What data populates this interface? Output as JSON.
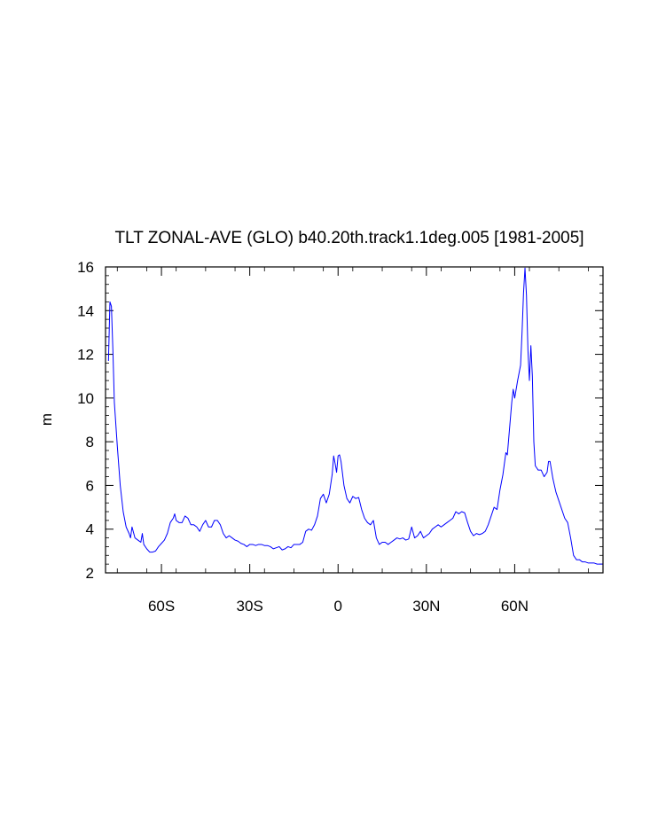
{
  "chart_data": {
    "type": "line",
    "title": "TLT ZONAL-AVE (GLO) b40.20th.track1.1deg.005 [1981-2005]",
    "xlabel": "",
    "ylabel": "m",
    "xlim": [
      -79,
      90
    ],
    "ylim": [
      2,
      16
    ],
    "grid": false,
    "x_ticks": [
      {
        "value": -60,
        "label": "60S"
      },
      {
        "value": -30,
        "label": "30S"
      },
      {
        "value": 0,
        "label": "0"
      },
      {
        "value": 30,
        "label": "30N"
      },
      {
        "value": 60,
        "label": "60N"
      }
    ],
    "y_ticks": [
      2,
      4,
      6,
      8,
      10,
      12,
      14,
      16
    ],
    "series": [
      {
        "color": "#0000ff",
        "points": [
          [
            -78,
            11.7
          ],
          [
            -77.5,
            14.4
          ],
          [
            -77,
            14.2
          ],
          [
            -76.5,
            12.2
          ],
          [
            -76,
            9.8
          ],
          [
            -75,
            7.8
          ],
          [
            -74,
            6.0
          ],
          [
            -73,
            4.8
          ],
          [
            -72,
            4.1
          ],
          [
            -71,
            3.8
          ],
          [
            -70.5,
            3.6
          ],
          [
            -70,
            4.1
          ],
          [
            -69,
            3.6
          ],
          [
            -68,
            3.5
          ],
          [
            -67,
            3.4
          ],
          [
            -66.5,
            3.8
          ],
          [
            -66,
            3.3
          ],
          [
            -65,
            3.1
          ],
          [
            -64,
            2.95
          ],
          [
            -63,
            2.95
          ],
          [
            -62,
            3.0
          ],
          [
            -61,
            3.2
          ],
          [
            -60,
            3.35
          ],
          [
            -59,
            3.5
          ],
          [
            -58,
            3.8
          ],
          [
            -57,
            4.3
          ],
          [
            -56,
            4.5
          ],
          [
            -55.5,
            4.7
          ],
          [
            -55,
            4.4
          ],
          [
            -54,
            4.3
          ],
          [
            -53,
            4.3
          ],
          [
            -52,
            4.6
          ],
          [
            -51,
            4.5
          ],
          [
            -50,
            4.2
          ],
          [
            -49,
            4.2
          ],
          [
            -48,
            4.1
          ],
          [
            -47,
            3.9
          ],
          [
            -46,
            4.2
          ],
          [
            -45,
            4.4
          ],
          [
            -44,
            4.1
          ],
          [
            -43,
            4.1
          ],
          [
            -42,
            4.4
          ],
          [
            -41,
            4.4
          ],
          [
            -40,
            4.2
          ],
          [
            -39,
            3.8
          ],
          [
            -38,
            3.6
          ],
          [
            -37,
            3.7
          ],
          [
            -36,
            3.6
          ],
          [
            -35,
            3.5
          ],
          [
            -34,
            3.45
          ],
          [
            -33,
            3.35
          ],
          [
            -32,
            3.3
          ],
          [
            -31,
            3.2
          ],
          [
            -30,
            3.3
          ],
          [
            -29,
            3.3
          ],
          [
            -28,
            3.25
          ],
          [
            -27,
            3.3
          ],
          [
            -26,
            3.3
          ],
          [
            -25,
            3.25
          ],
          [
            -24,
            3.25
          ],
          [
            -23,
            3.2
          ],
          [
            -22,
            3.1
          ],
          [
            -21,
            3.15
          ],
          [
            -20,
            3.2
          ],
          [
            -19,
            3.05
          ],
          [
            -18,
            3.1
          ],
          [
            -17,
            3.2
          ],
          [
            -16,
            3.15
          ],
          [
            -15,
            3.3
          ],
          [
            -14,
            3.3
          ],
          [
            -13,
            3.3
          ],
          [
            -12,
            3.4
          ],
          [
            -11,
            3.9
          ],
          [
            -10,
            4.0
          ],
          [
            -9,
            3.95
          ],
          [
            -8,
            4.2
          ],
          [
            -7,
            4.6
          ],
          [
            -6,
            5.4
          ],
          [
            -5,
            5.6
          ],
          [
            -4,
            5.2
          ],
          [
            -3,
            5.6
          ],
          [
            -2,
            6.5
          ],
          [
            -1.5,
            7.35
          ],
          [
            -1,
            7.0
          ],
          [
            -0.5,
            6.6
          ],
          [
            0,
            7.35
          ],
          [
            0.5,
            7.4
          ],
          [
            1,
            7.1
          ],
          [
            2,
            6.0
          ],
          [
            3,
            5.4
          ],
          [
            4,
            5.2
          ],
          [
            5,
            5.5
          ],
          [
            6,
            5.4
          ],
          [
            7,
            5.45
          ],
          [
            8,
            4.9
          ],
          [
            9,
            4.5
          ],
          [
            10,
            4.3
          ],
          [
            11,
            4.2
          ],
          [
            12,
            4.4
          ],
          [
            13,
            3.6
          ],
          [
            14,
            3.3
          ],
          [
            15,
            3.4
          ],
          [
            16,
            3.4
          ],
          [
            17,
            3.3
          ],
          [
            18,
            3.4
          ],
          [
            19,
            3.5
          ],
          [
            20,
            3.6
          ],
          [
            21,
            3.55
          ],
          [
            22,
            3.6
          ],
          [
            23,
            3.5
          ],
          [
            24,
            3.55
          ],
          [
            25,
            4.1
          ],
          [
            26,
            3.6
          ],
          [
            27,
            3.7
          ],
          [
            28,
            3.9
          ],
          [
            29,
            3.6
          ],
          [
            30,
            3.7
          ],
          [
            31,
            3.8
          ],
          [
            32,
            4.0
          ],
          [
            33,
            4.1
          ],
          [
            34,
            4.2
          ],
          [
            35,
            4.1
          ],
          [
            36,
            4.2
          ],
          [
            37,
            4.3
          ],
          [
            38,
            4.4
          ],
          [
            39,
            4.5
          ],
          [
            40,
            4.8
          ],
          [
            41,
            4.7
          ],
          [
            42,
            4.8
          ],
          [
            43,
            4.75
          ],
          [
            44,
            4.3
          ],
          [
            45,
            3.9
          ],
          [
            46,
            3.7
          ],
          [
            47,
            3.8
          ],
          [
            48,
            3.75
          ],
          [
            49,
            3.8
          ],
          [
            50,
            3.9
          ],
          [
            51,
            4.2
          ],
          [
            52,
            4.6
          ],
          [
            53,
            5.0
          ],
          [
            54,
            4.9
          ],
          [
            55,
            5.8
          ],
          [
            56,
            6.5
          ],
          [
            57,
            7.5
          ],
          [
            57.5,
            7.4
          ],
          [
            58,
            8.2
          ],
          [
            59,
            9.8
          ],
          [
            59.5,
            10.4
          ],
          [
            60,
            10.0
          ],
          [
            61,
            10.8
          ],
          [
            62,
            11.5
          ],
          [
            62.5,
            13.0
          ],
          [
            63,
            14.8
          ],
          [
            63.5,
            15.95
          ],
          [
            64,
            14.7
          ],
          [
            64.5,
            12.2
          ],
          [
            65,
            10.8
          ],
          [
            65.5,
            12.4
          ],
          [
            66,
            11.0
          ],
          [
            66.5,
            8.0
          ],
          [
            67,
            6.9
          ],
          [
            68,
            6.7
          ],
          [
            69,
            6.7
          ],
          [
            70,
            6.4
          ],
          [
            71,
            6.6
          ],
          [
            71.5,
            7.1
          ],
          [
            72,
            7.1
          ],
          [
            73,
            6.3
          ],
          [
            74,
            5.7
          ],
          [
            75,
            5.3
          ],
          [
            76,
            4.9
          ],
          [
            77,
            4.5
          ],
          [
            78,
            4.3
          ],
          [
            79,
            3.6
          ],
          [
            80,
            2.8
          ],
          [
            81,
            2.6
          ],
          [
            82,
            2.6
          ],
          [
            83,
            2.5
          ],
          [
            84,
            2.5
          ],
          [
            85,
            2.45
          ],
          [
            86,
            2.45
          ],
          [
            87,
            2.45
          ],
          [
            88,
            2.4
          ],
          [
            89,
            2.4
          ],
          [
            90,
            2.4
          ]
        ]
      }
    ]
  }
}
